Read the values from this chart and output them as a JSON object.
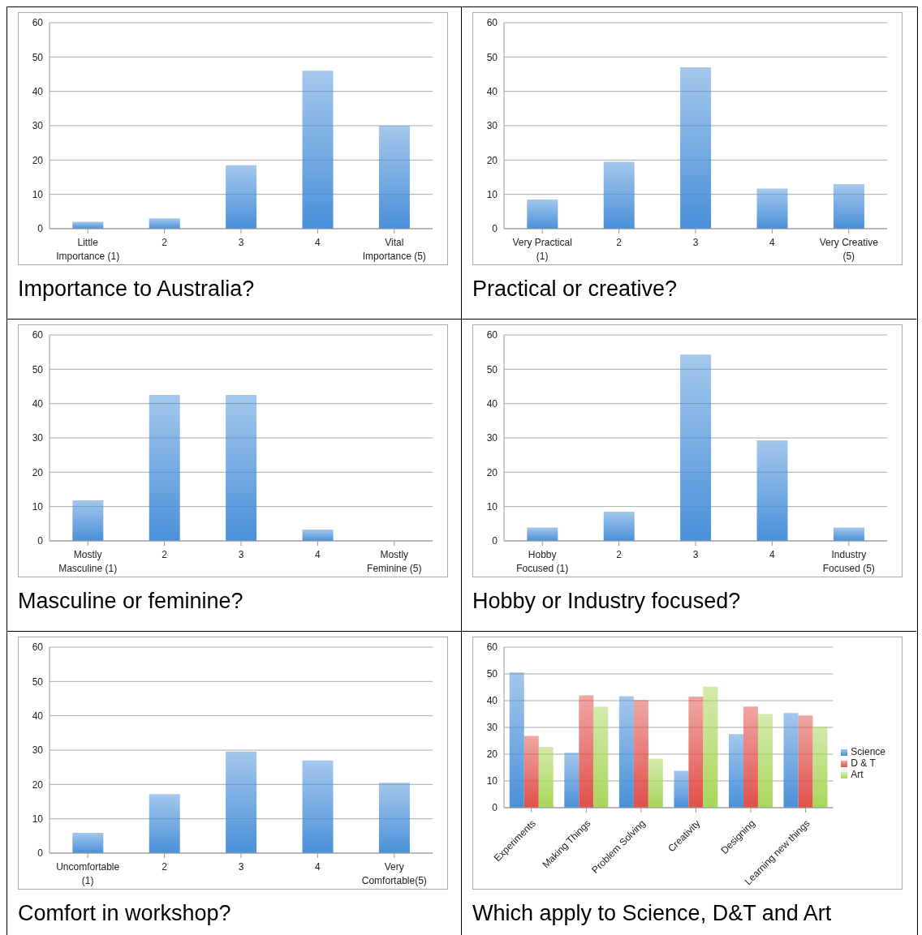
{
  "chart_data": [
    {
      "type": "bar",
      "title": "Importance to Australia?",
      "categories": [
        "Little Importance (1)",
        "2",
        "3",
        "4",
        "Vital Importance (5)"
      ],
      "values": [
        2,
        3,
        18.5,
        46,
        30
      ],
      "color": "#4a90d9",
      "ylim": [
        0,
        60
      ],
      "yticks": [
        0,
        10,
        20,
        30,
        40,
        50,
        60
      ],
      "grid": "y",
      "legend": false
    },
    {
      "type": "bar",
      "title": "Practical or creative?",
      "categories": [
        "Very Practical (1)",
        "2",
        "3",
        "4",
        "Very Creative (5)"
      ],
      "values": [
        8.5,
        19.5,
        47,
        11.7,
        13
      ],
      "color": "#4a90d9",
      "ylim": [
        0,
        60
      ],
      "yticks": [
        0,
        10,
        20,
        30,
        40,
        50,
        60
      ],
      "grid": "y",
      "legend": false
    },
    {
      "type": "bar",
      "title": "Masculine or feminine?",
      "categories": [
        "Mostly Masculine (1)",
        "2",
        "3",
        "4",
        "Mostly Feminine (5)"
      ],
      "values": [
        11.8,
        42.5,
        42.5,
        3.3,
        0
      ],
      "color": "#4a90d9",
      "ylim": [
        0,
        60
      ],
      "yticks": [
        0,
        10,
        20,
        30,
        40,
        50,
        60
      ],
      "grid": "y",
      "legend": false
    },
    {
      "type": "bar",
      "title": "Hobby or Industry focused?",
      "categories": [
        "Hobby Focused (1)",
        "2",
        "3",
        "4",
        "Industry Focused (5)"
      ],
      "values": [
        3.9,
        8.5,
        54.3,
        29.3,
        3.9
      ],
      "color": "#4a90d9",
      "ylim": [
        0,
        60
      ],
      "yticks": [
        0,
        10,
        20,
        30,
        40,
        50,
        60
      ],
      "grid": "y",
      "legend": false
    },
    {
      "type": "bar",
      "title": "Comfort in workshop?",
      "categories": [
        "Uncomfortable (1)",
        "2",
        "3",
        "4",
        "Very Comfortable(5)"
      ],
      "values": [
        5.9,
        17.2,
        29.6,
        27,
        20.5
      ],
      "color": "#4a90d9",
      "ylim": [
        0,
        60
      ],
      "yticks": [
        0,
        10,
        20,
        30,
        40,
        50,
        60
      ],
      "grid": "y",
      "legend": false
    },
    {
      "type": "bar",
      "title": "Which apply to Science, D&T and Art",
      "categories": [
        "Experiments",
        "Making Things",
        "Problem Solving",
        "Creativity",
        "Designing",
        "Learning new things"
      ],
      "series": [
        {
          "name": "Science",
          "color": "#4a90d9",
          "values": [
            50.5,
            20.5,
            41.7,
            13.8,
            27.5,
            35.4
          ]
        },
        {
          "name": "D & T",
          "color": "#e0504a",
          "values": [
            26.8,
            42,
            40.2,
            41.5,
            37.8,
            34.5
          ]
        },
        {
          "name": "Art",
          "color": "#a8d65a",
          "values": [
            22.7,
            37.7,
            18.3,
            45.2,
            35,
            30.3
          ]
        }
      ],
      "ylim": [
        0,
        60
      ],
      "yticks": [
        0,
        10,
        20,
        30,
        40,
        50,
        60
      ],
      "grid": "y",
      "legend": "right"
    }
  ]
}
